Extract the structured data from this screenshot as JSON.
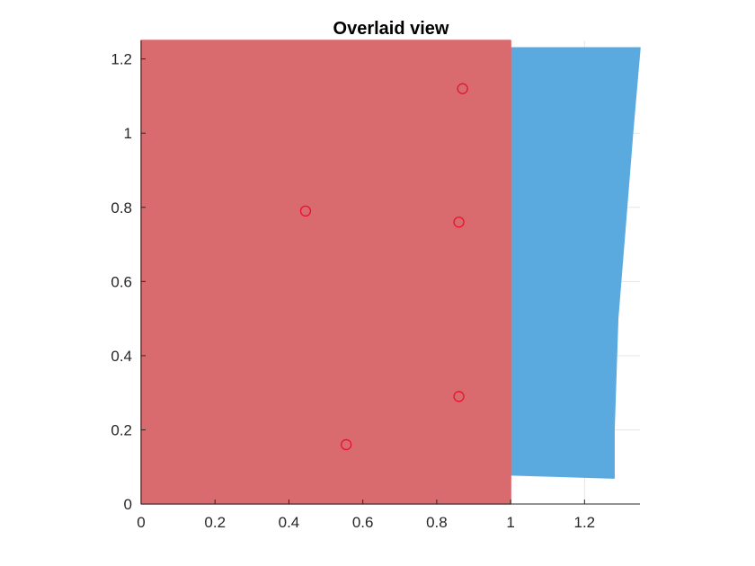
{
  "chart_data": {
    "type": "area",
    "title": "Overlaid view",
    "xlabel": "",
    "ylabel": "",
    "xlim": [
      0,
      1.35
    ],
    "ylim": [
      0,
      1.25
    ],
    "x_ticks": [
      0,
      0.2,
      0.4,
      0.6,
      0.8,
      1,
      1.2
    ],
    "x_tick_labels": [
      "0",
      "0.2",
      "0.4",
      "0.6",
      "0.8",
      "1",
      "1.2"
    ],
    "y_ticks": [
      0,
      0.2,
      0.4,
      0.6,
      0.8,
      1,
      1.2
    ],
    "y_tick_labels": [
      "0",
      "0.2",
      "0.4",
      "0.6",
      "0.8",
      "1",
      "1.2"
    ],
    "grid": true,
    "legend": "none",
    "colors": {
      "red_region": "#d96b6e",
      "blue_region": "#5aaae0",
      "markers": "#e8112d",
      "axis": "#262626",
      "grid": "#e6e6e6"
    },
    "series": [
      {
        "kind": "polygon",
        "color": "#5aaae0",
        "points": [
          [
            0.95,
            0.08
          ],
          [
            1.28,
            0.07
          ],
          [
            1.28,
            0.2
          ],
          [
            1.29,
            0.5
          ],
          [
            1.31,
            0.75
          ],
          [
            1.33,
            1.0
          ],
          [
            1.35,
            1.23
          ],
          [
            0.95,
            1.23
          ]
        ]
      },
      {
        "kind": "rectangle",
        "color": "#d96b6e",
        "points": [
          [
            0,
            0
          ],
          [
            1,
            0
          ],
          [
            1,
            1.25
          ],
          [
            0,
            1.25
          ]
        ]
      },
      {
        "kind": "markers",
        "marker": "circle",
        "color": "#e8112d",
        "points": [
          [
            0.87,
            1.12
          ],
          [
            0.445,
            0.79
          ],
          [
            0.86,
            0.76
          ],
          [
            0.86,
            0.29
          ],
          [
            0.555,
            0.16
          ]
        ]
      }
    ]
  }
}
